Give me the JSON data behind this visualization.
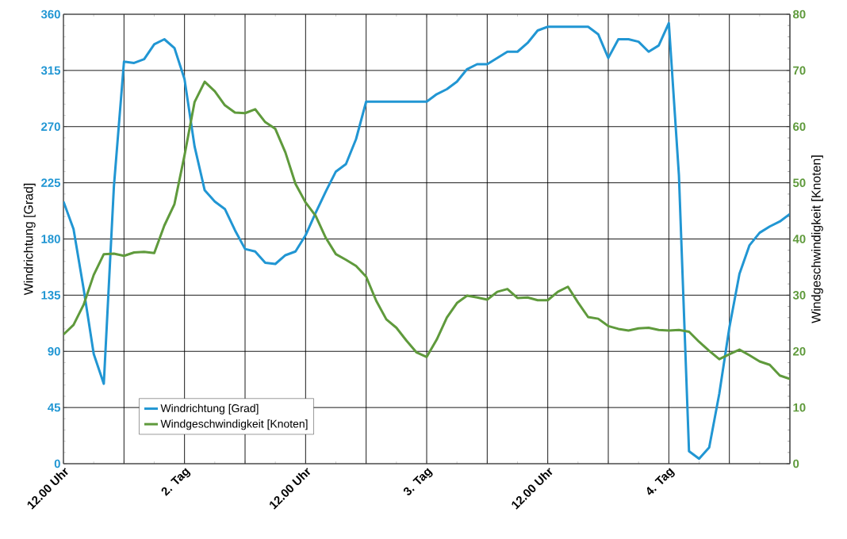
{
  "chart_data": {
    "type": "line",
    "ylabel": "Windrichtung [Grad]",
    "y2label": "Windgeschwindigkeit  [Knoten]",
    "categories": [
      "12.00 Uhr",
      null,
      null,
      null,
      null,
      null,
      null,
      null,
      null,
      null,
      null,
      null,
      "2. Tag",
      null,
      null,
      null,
      null,
      null,
      null,
      null,
      null,
      null,
      null,
      null,
      "12.00 Uhr",
      null,
      null,
      null,
      null,
      null,
      null,
      null,
      null,
      null,
      null,
      null,
      "3. Tag",
      null,
      null,
      null,
      null,
      null,
      null,
      null,
      null,
      null,
      null,
      null,
      "12.00 Uhr",
      null,
      null,
      null,
      null,
      null,
      null,
      null,
      null,
      null,
      null,
      null,
      "4. Tag",
      null,
      null,
      null,
      null,
      null,
      null,
      null,
      null,
      null,
      null,
      null,
      null
    ],
    "ylim": [
      0,
      360
    ],
    "yticks": [
      0,
      45,
      90,
      135,
      180,
      225,
      270,
      315,
      360
    ],
    "y2lim": [
      0,
      80
    ],
    "y2ticks": [
      0,
      10,
      20,
      30,
      40,
      50,
      60,
      70,
      80
    ],
    "grid": true,
    "legend": "bottom left",
    "series": [
      {
        "name": "Windrichtung [Grad]",
        "color": "#2196d3",
        "axis": "y",
        "values": [
          210,
          188,
          140,
          88,
          64,
          222,
          322,
          321,
          324,
          336,
          340,
          333,
          308,
          254,
          219,
          210,
          204,
          187,
          172,
          170,
          161,
          160,
          167,
          170,
          183,
          201,
          218,
          234,
          240,
          260,
          290,
          290,
          290,
          290,
          290,
          290,
          290,
          296,
          300,
          306,
          316,
          320,
          320,
          325,
          330,
          330,
          337,
          347,
          350,
          350,
          350,
          350,
          350,
          344,
          325,
          340,
          340,
          338,
          330,
          335,
          353,
          231,
          10,
          4,
          13,
          56,
          109,
          152,
          175,
          185,
          190,
          194,
          200
        ]
      },
      {
        "name": "Windgeschwindigkeit [Knoten]",
        "color": "#5f9a3c",
        "axis": "y2",
        "values": [
          23,
          24.7,
          28.3,
          33.6,
          37.3,
          37.4,
          37,
          37.6,
          37.7,
          37.5,
          42.4,
          46.2,
          54.9,
          64.4,
          68,
          66.3,
          63.8,
          62.5,
          62.4,
          63.1,
          60.8,
          59.6,
          55.4,
          49.8,
          46.5,
          44.1,
          40.2,
          37.3,
          36.3,
          35.2,
          33.3,
          29,
          25.7,
          24.2,
          21.9,
          19.8,
          19,
          22.1,
          26,
          28.6,
          29.9,
          29.6,
          29.2,
          30.6,
          31.1,
          29.5,
          29.6,
          29.1,
          29.1,
          30.6,
          31.5,
          28.7,
          26.1,
          25.8,
          24.5,
          24,
          23.7,
          24.1,
          24.2,
          23.8,
          23.7,
          23.8,
          23.5,
          21.7,
          20.1,
          18.6,
          19.5,
          20.3,
          19.3,
          18.2,
          17.6,
          15.7,
          15.1
        ]
      }
    ]
  }
}
